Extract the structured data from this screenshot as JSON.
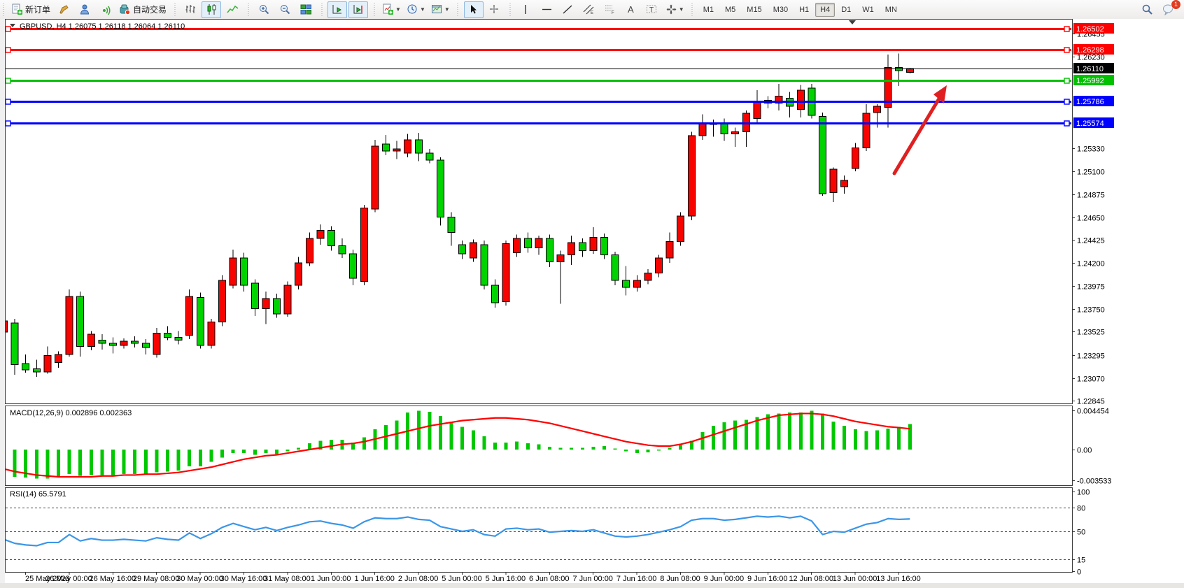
{
  "toolbar": {
    "groups": [
      {
        "name": "trade",
        "items": [
          {
            "name": "new-order-button",
            "icon": "doc-plus",
            "label": "新订单",
            "interactable": true
          },
          {
            "name": "styler-button",
            "icon": "crayon",
            "interactable": true
          },
          {
            "name": "profile-button",
            "icon": "person",
            "interactable": true
          },
          {
            "name": "signals-button",
            "icon": "signal",
            "interactable": true
          },
          {
            "name": "autotrading-button",
            "icon": "robot",
            "label": "自动交易",
            "interactable": true
          }
        ]
      },
      {
        "name": "chart-type",
        "items": [
          {
            "name": "bar-chart-button",
            "icon": "bars",
            "interactable": true
          },
          {
            "name": "candlestick-chart-button",
            "icon": "candles",
            "pressed": true,
            "interactable": true
          },
          {
            "name": "line-chart-button",
            "icon": "linechart",
            "interactable": true
          }
        ]
      },
      {
        "name": "zoom",
        "items": [
          {
            "name": "zoom-in-button",
            "icon": "zoom-in",
            "interactable": true
          },
          {
            "name": "zoom-out-button",
            "icon": "zoom-out",
            "interactable": true
          },
          {
            "name": "tile-windows-button",
            "icon": "tile",
            "interactable": true
          }
        ]
      },
      {
        "name": "scroll",
        "items": [
          {
            "name": "auto-scroll-button",
            "icon": "autoscroll",
            "pressed": true,
            "interactable": true
          },
          {
            "name": "chart-shift-button",
            "icon": "chartshift",
            "pressed": true,
            "interactable": true
          }
        ]
      },
      {
        "name": "dropdowns",
        "items": [
          {
            "name": "indicators-button",
            "icon": "indicator",
            "caret": true,
            "interactable": true
          },
          {
            "name": "periods-button",
            "icon": "clock",
            "caret": true,
            "interactable": true
          },
          {
            "name": "templates-button",
            "icon": "template",
            "caret": true,
            "interactable": true
          }
        ]
      },
      {
        "name": "pointer",
        "items": [
          {
            "name": "cursor-button",
            "icon": "cursor",
            "pressed": true,
            "interactable": true
          },
          {
            "name": "crosshair-button",
            "icon": "crosshair",
            "interactable": true
          }
        ]
      },
      {
        "name": "objects",
        "items": [
          {
            "name": "vertical-line-button",
            "icon": "vline",
            "interactable": true
          },
          {
            "name": "horizontal-line-button",
            "icon": "hline",
            "interactable": true
          },
          {
            "name": "trendline-button",
            "icon": "trend",
            "interactable": true
          },
          {
            "name": "equidistant-channel-button",
            "icon": "channel",
            "interactable": true
          },
          {
            "name": "fibonacci-button",
            "icon": "fibo",
            "interactable": true
          },
          {
            "name": "text-button",
            "icon": "textA",
            "interactable": true
          },
          {
            "name": "text-label-button",
            "icon": "textT",
            "interactable": true
          },
          {
            "name": "arrows-button",
            "icon": "arrows",
            "caret": true,
            "interactable": true
          }
        ]
      }
    ],
    "periods": [
      "M1",
      "M5",
      "M15",
      "M30",
      "H1",
      "H4",
      "D1",
      "W1",
      "MN"
    ],
    "active_period": "H4",
    "right": {
      "search_icon": "search",
      "chat_icon": "chat",
      "chat_badge": "1"
    }
  },
  "chart_data": {
    "type": "candlestick",
    "title": {
      "symbol": "GBPUSD, H4",
      "ohlc": "1.26075 1.26118 1.26064 1.26110"
    },
    "colors": {
      "bull": "#f80400",
      "bear": "#00d300",
      "wick": "#000000",
      "bg": "#ffffff",
      "line_red": "#ff0000",
      "line_green": "#00c000",
      "line_blue": "#0000ff",
      "current": "#000000",
      "macd_hist": "#00c800",
      "macd_signal": "#ff0000",
      "rsi_line": "#3b96e8",
      "arrow": "#e02020"
    },
    "price_axis": {
      "ticks": [
        1.26455,
        1.2623,
        1.2533,
        1.251,
        1.24875,
        1.2465,
        1.24425,
        1.242,
        1.23975,
        1.2375,
        1.23525,
        1.23295,
        1.2307,
        1.22845
      ],
      "tick_labels": [
        "1.26455",
        "1.26230",
        "1.25330",
        "1.25100",
        "1.24875",
        "1.24650",
        "1.24425",
        "1.24200",
        "1.23975",
        "1.23750",
        "1.23525",
        "1.23295",
        "1.23070",
        "1.22845"
      ]
    },
    "hlines": [
      {
        "price": 1.26502,
        "label": "1.26502",
        "color": "#ff0000",
        "width": 3
      },
      {
        "price": 1.26298,
        "label": "1.26298",
        "color": "#ff0000",
        "width": 3
      },
      {
        "price": 1.25992,
        "label": "1.25992",
        "color": "#00c000",
        "width": 3
      },
      {
        "price": 1.25786,
        "label": "1.25786",
        "color": "#0000ff",
        "width": 3
      },
      {
        "price": 1.25574,
        "label": "1.25574",
        "color": "#0000ff",
        "width": 3
      }
    ],
    "current_price": {
      "price": 1.2611,
      "label": "1.26110",
      "color": "#000000"
    },
    "time_labels": [
      "25 May 2023",
      "26 May 00:00",
      "26 May 16:00",
      "29 May 08:00",
      "30 May 00:00",
      "30 May 16:00",
      "31 May 08:00",
      "1 Jun 00:00",
      "1 Jun 16:00",
      "2 Jun 08:00",
      "5 Jun 00:00",
      "5 Jun 16:00",
      "6 Jun 08:00",
      "7 Jun 00:00",
      "7 Jun 16:00",
      "8 Jun 08:00",
      "9 Jun 00:00",
      "9 Jun 16:00",
      "12 Jun 08:00",
      "13 Jun 00:00",
      "13 Jun 16:00"
    ],
    "candles": [
      [
        1.2352,
        1.2366,
        1.2349,
        1.2363
      ],
      [
        1.2361,
        1.2365,
        1.231,
        1.232
      ],
      [
        1.2321,
        1.233,
        1.2312,
        1.2315
      ],
      [
        1.2316,
        1.2325,
        1.2308,
        1.2313
      ],
      [
        1.2313,
        1.2338,
        1.2311,
        1.2329
      ],
      [
        1.2322,
        1.2333,
        1.2317,
        1.233
      ],
      [
        1.233,
        1.2394,
        1.2328,
        1.2387
      ],
      [
        1.2387,
        1.2392,
        1.2328,
        1.2338
      ],
      [
        1.2338,
        1.2353,
        1.2334,
        1.235
      ],
      [
        1.2344,
        1.235,
        1.2335,
        1.2341
      ],
      [
        1.2341,
        1.2347,
        1.2331,
        1.2339
      ],
      [
        1.2339,
        1.2346,
        1.2336,
        1.2343
      ],
      [
        1.2343,
        1.2348,
        1.2337,
        1.2341
      ],
      [
        1.2341,
        1.2345,
        1.233,
        1.2337
      ],
      [
        1.233,
        1.2356,
        1.2327,
        1.2351
      ],
      [
        1.2351,
        1.2358,
        1.2344,
        1.2347
      ],
      [
        1.2347,
        1.2353,
        1.234,
        1.2344
      ],
      [
        1.2349,
        1.2394,
        1.2345,
        1.2387
      ],
      [
        1.2386,
        1.2391,
        1.2336,
        1.2339
      ],
      [
        1.2339,
        1.2365,
        1.2336,
        1.2362
      ],
      [
        1.2362,
        1.2408,
        1.2358,
        1.2403
      ],
      [
        1.2398,
        1.2433,
        1.2395,
        1.2425
      ],
      [
        1.2425,
        1.243,
        1.2392,
        1.2398
      ],
      [
        1.24,
        1.2404,
        1.2368,
        1.2375
      ],
      [
        1.2375,
        1.2392,
        1.236,
        1.2385
      ],
      [
        1.2385,
        1.239,
        1.2366,
        1.237
      ],
      [
        1.237,
        1.2402,
        1.2367,
        1.2398
      ],
      [
        1.2398,
        1.2426,
        1.2394,
        1.242
      ],
      [
        1.242,
        1.245,
        1.2417,
        1.2444
      ],
      [
        1.2444,
        1.2458,
        1.2438,
        1.2452
      ],
      [
        1.2452,
        1.2456,
        1.2432,
        1.2437
      ],
      [
        1.2437,
        1.2444,
        1.2425,
        1.2429
      ],
      [
        1.2429,
        1.2433,
        1.2398,
        1.2405
      ],
      [
        1.2402,
        1.2477,
        1.2398,
        1.2474
      ],
      [
        1.2473,
        1.2541,
        1.247,
        1.2535
      ],
      [
        1.2537,
        1.2546,
        1.2526,
        1.253
      ],
      [
        1.253,
        1.254,
        1.2522,
        1.2532
      ],
      [
        1.2528,
        1.2547,
        1.2524,
        1.2541
      ],
      [
        1.2541,
        1.2548,
        1.252,
        1.2528
      ],
      [
        1.2528,
        1.2532,
        1.2518,
        1.2521
      ],
      [
        1.2521,
        1.2524,
        1.2457,
        1.2465
      ],
      [
        1.2465,
        1.247,
        1.2437,
        1.245
      ],
      [
        1.2438,
        1.2442,
        1.2424,
        1.2429
      ],
      [
        1.2425,
        1.2443,
        1.2421,
        1.244
      ],
      [
        1.2438,
        1.2442,
        1.2394,
        1.2398
      ],
      [
        1.2398,
        1.2404,
        1.2376,
        1.2381
      ],
      [
        1.2382,
        1.2442,
        1.2378,
        1.2439
      ],
      [
        1.243,
        1.2448,
        1.2426,
        1.2444
      ],
      [
        1.2444,
        1.245,
        1.243,
        1.2435
      ],
      [
        1.2435,
        1.2447,
        1.2428,
        1.2444
      ],
      [
        1.2444,
        1.2448,
        1.2416,
        1.2421
      ],
      [
        1.2421,
        1.2432,
        1.238,
        1.2428
      ],
      [
        1.2428,
        1.2447,
        1.2418,
        1.244
      ],
      [
        1.244,
        1.2444,
        1.2426,
        1.2432
      ],
      [
        1.2432,
        1.2455,
        1.2429,
        1.2445
      ],
      [
        1.2445,
        1.2449,
        1.2424,
        1.2428
      ],
      [
        1.2428,
        1.2431,
        1.2398,
        1.2403
      ],
      [
        1.2403,
        1.2417,
        1.2388,
        1.2396
      ],
      [
        1.2396,
        1.2408,
        1.2392,
        1.2403
      ],
      [
        1.2403,
        1.2414,
        1.2399,
        1.241
      ],
      [
        1.241,
        1.2428,
        1.2406,
        1.2425
      ],
      [
        1.2425,
        1.245,
        1.242,
        1.2441
      ],
      [
        1.2441,
        1.247,
        1.2437,
        1.2466
      ],
      [
        1.2466,
        1.2549,
        1.2462,
        1.2545
      ],
      [
        1.2545,
        1.2566,
        1.2541,
        1.2557
      ],
      [
        1.2557,
        1.2561,
        1.2544,
        1.2556
      ],
      [
        1.2558,
        1.2562,
        1.254,
        1.2547
      ],
      [
        1.2547,
        1.2553,
        1.2534,
        1.2549
      ],
      [
        1.2549,
        1.257,
        1.2534,
        1.2567
      ],
      [
        1.2562,
        1.259,
        1.2558,
        1.2579
      ],
      [
        1.258,
        1.2584,
        1.2572,
        1.2577
      ],
      [
        1.2577,
        1.2596,
        1.257,
        1.2584
      ],
      [
        1.2582,
        1.2588,
        1.2563,
        1.2574
      ],
      [
        1.2571,
        1.2595,
        1.2563,
        1.259
      ],
      [
        1.2592,
        1.2596,
        1.2562,
        1.2565
      ],
      [
        1.2564,
        1.2568,
        1.2486,
        1.2488
      ],
      [
        1.2489,
        1.2514,
        1.248,
        1.2512
      ],
      [
        1.2495,
        1.2506,
        1.2488,
        1.2501
      ],
      [
        1.2513,
        1.2538,
        1.251,
        1.2533
      ],
      [
        1.2533,
        1.2576,
        1.253,
        1.2567
      ],
      [
        1.2568,
        1.2576,
        1.2553,
        1.2574
      ],
      [
        1.2573,
        1.2625,
        1.2553,
        1.2612
      ],
      [
        1.2612,
        1.2626,
        1.2594,
        1.2609
      ],
      [
        1.26075,
        1.26118,
        1.26064,
        1.2611
      ]
    ],
    "macd": {
      "label_text": "MACD(12,26,9) 0.002896 0.002363",
      "axis_labels": [
        "0.004454",
        "0.00",
        "-0.003533"
      ],
      "axis_values": [
        0.004454,
        0,
        -0.003533
      ],
      "hist": [
        -0.0028,
        -0.0031,
        -0.0032,
        -0.0033,
        -0.0033,
        -0.0032,
        -0.0028,
        -0.003,
        -0.0029,
        -0.0029,
        -0.0029,
        -0.0028,
        -0.0028,
        -0.0028,
        -0.0026,
        -0.0025,
        -0.0024,
        -0.0019,
        -0.0019,
        -0.0014,
        -0.0009,
        -0.0004,
        -0.0004,
        -0.0006,
        -0.0004,
        -0.0005,
        -0.0002,
        0.0002,
        0.0007,
        0.001,
        0.0011,
        0.0011,
        0.0008,
        0.0014,
        0.0023,
        0.0028,
        0.0033,
        0.0042,
        0.0044,
        0.0043,
        0.0038,
        0.0032,
        0.0026,
        0.0022,
        0.0015,
        0.0008,
        0.0008,
        0.0009,
        0.0007,
        0.0006,
        0.0003,
        0.0002,
        0.0002,
        0.0002,
        0.0003,
        0.0004,
        0.0001,
        -0.0002,
        -0.0004,
        -0.0003,
        -0.0001,
        0.0002,
        0.0005,
        0.001,
        0.002,
        0.0027,
        0.0031,
        0.0033,
        0.0034,
        0.0037,
        0.004,
        0.0041,
        0.0042,
        0.0042,
        0.0044,
        0.0041,
        0.0032,
        0.0027,
        0.0023,
        0.0021,
        0.0022,
        0.0024,
        0.0026,
        0.002896
      ],
      "signal": [
        -0.0022,
        -0.0025,
        -0.0027,
        -0.0029,
        -0.003,
        -0.0031,
        -0.0031,
        -0.0031,
        -0.0031,
        -0.003,
        -0.003,
        -0.0029,
        -0.0029,
        -0.0028,
        -0.0028,
        -0.0027,
        -0.0026,
        -0.0024,
        -0.0022,
        -0.002,
        -0.0017,
        -0.0014,
        -0.0011,
        -0.0009,
        -0.0007,
        -0.0006,
        -0.0004,
        -0.0002,
        0.0,
        0.0002,
        0.0004,
        0.0006,
        0.0007,
        0.0009,
        0.0012,
        0.0015,
        0.0018,
        0.0021,
        0.0024,
        0.0027,
        0.0029,
        0.0031,
        0.0033,
        0.0034,
        0.0035,
        0.0036,
        0.0036,
        0.0035,
        0.0034,
        0.0032,
        0.003,
        0.0027,
        0.0024,
        0.0021,
        0.0018,
        0.0015,
        0.0012,
        0.0009,
        0.0007,
        0.0005,
        0.0004,
        0.0004,
        0.0006,
        0.0009,
        0.0013,
        0.0017,
        0.0021,
        0.0025,
        0.0029,
        0.0033,
        0.0036,
        0.0039,
        0.004,
        0.0041,
        0.0041,
        0.004,
        0.0038,
        0.0035,
        0.0032,
        0.003,
        0.0028,
        0.0026,
        0.0025,
        0.002363
      ]
    },
    "rsi": {
      "label_text": "RSI(14) 65.5791",
      "axis_labels": [
        "100",
        "80",
        "50",
        "15",
        "0"
      ],
      "axis_values": [
        100,
        80,
        50,
        15,
        0
      ],
      "dashed_levels": [
        80,
        50,
        15
      ],
      "series": [
        40,
        35,
        33,
        32,
        36,
        36,
        46,
        38,
        41,
        39,
        39,
        40,
        39,
        38,
        42,
        40,
        39,
        48,
        41,
        47,
        55,
        60,
        56,
        52,
        55,
        51,
        55,
        58,
        62,
        63,
        60,
        58,
        54,
        62,
        67,
        66,
        66,
        68,
        65,
        64,
        56,
        53,
        50,
        52,
        46,
        44,
        53,
        54,
        52,
        53,
        49,
        50,
        51,
        50,
        52,
        48,
        44,
        43,
        44,
        46,
        49,
        52,
        56,
        64,
        66,
        66,
        64,
        65,
        67,
        69,
        68,
        69,
        67,
        69,
        63,
        46,
        50,
        49,
        54,
        59,
        61,
        66,
        65,
        65.58
      ]
    },
    "arrow": {
      "from": [
        1278,
        248
      ],
      "to": [
        1342,
        141
      ],
      "tip": [
        1353,
        122
      ]
    }
  }
}
